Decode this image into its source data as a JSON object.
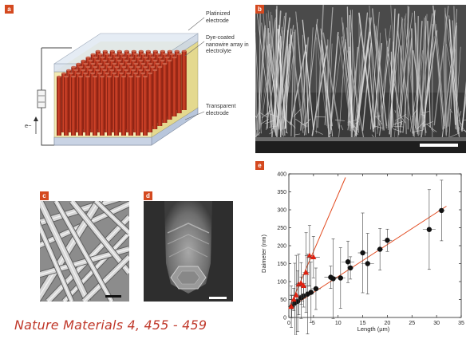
{
  "panels": {
    "a": {
      "letter": "a",
      "labels": {
        "top_electrode": "Platinized electrode",
        "nanowire": "Dye-coated nanowire array in electrolyte",
        "bottom_electrode": "Transparent electrode",
        "electron": "e−"
      }
    },
    "b": {
      "letter": "b"
    },
    "c": {
      "letter": "c"
    },
    "d": {
      "letter": "d"
    },
    "e": {
      "letter": "e"
    }
  },
  "caption": "Nature Materials 4, 455 - 459",
  "chart_data": {
    "type": "scatter",
    "title": "",
    "xlabel": "Length (µm)",
    "ylabel": "Daimeter (nm)",
    "xlim": [
      0,
      35
    ],
    "ylim": [
      0,
      400
    ],
    "xticks": [
      0,
      5,
      10,
      15,
      20,
      25,
      30,
      35
    ],
    "yticks": [
      0,
      50,
      100,
      150,
      200,
      250,
      300,
      350,
      400
    ],
    "grid": false,
    "series": [
      {
        "marker": "circle",
        "color": "#111111",
        "points": [
          {
            "x": 0.6,
            "y": 30
          },
          {
            "x": 1.2,
            "y": 40
          },
          {
            "x": 1.8,
            "y": 45
          },
          {
            "x": 2.5,
            "y": 55
          },
          {
            "x": 3.0,
            "y": 60
          },
          {
            "x": 3.8,
            "y": 65
          },
          {
            "x": 4.5,
            "y": 70
          },
          {
            "x": 5.5,
            "y": 80
          },
          {
            "x": 8.5,
            "y": 112
          },
          {
            "x": 9.0,
            "y": 108
          },
          {
            "x": 10.5,
            "y": 110
          },
          {
            "x": 12.0,
            "y": 155
          },
          {
            "x": 12.5,
            "y": 138
          },
          {
            "x": 15.0,
            "y": 180
          },
          {
            "x": 16.0,
            "y": 150
          },
          {
            "x": 18.5,
            "y": 190
          },
          {
            "x": 20.0,
            "y": 215
          },
          {
            "x": 28.5,
            "y": 245
          },
          {
            "x": 31.0,
            "y": 298
          }
        ]
      },
      {
        "marker": "triangle",
        "color": "#e02010",
        "points": [
          {
            "x": 0.5,
            "y": 30
          },
          {
            "x": 1.0,
            "y": 50
          },
          {
            "x": 1.5,
            "y": 62
          },
          {
            "x": 2.0,
            "y": 92
          },
          {
            "x": 2.5,
            "y": 95
          },
          {
            "x": 3.0,
            "y": 88
          },
          {
            "x": 3.5,
            "y": 125
          },
          {
            "x": 4.2,
            "y": 172
          },
          {
            "x": 5.0,
            "y": 168
          }
        ]
      }
    ],
    "fit_lines": [
      {
        "color": "#e24a1f",
        "from": [
          0,
          25
        ],
        "to": [
          32,
          310
        ]
      },
      {
        "color": "#e24a1f",
        "from": [
          0,
          25
        ],
        "to": [
          11.5,
          390
        ]
      }
    ]
  }
}
